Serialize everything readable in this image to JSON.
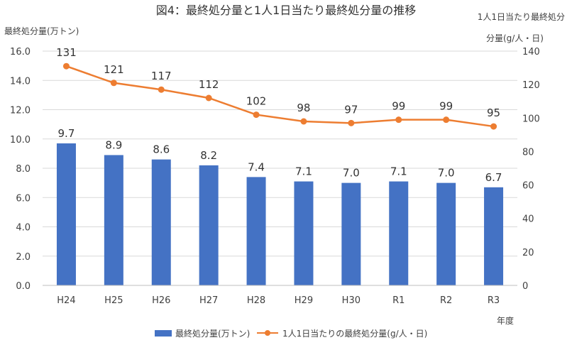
{
  "chart_data": {
    "type": "bar+line",
    "title": "図4：最終処分量と1人1日当たり最終処分量の推移",
    "categories": [
      "H24",
      "H25",
      "H26",
      "H27",
      "H28",
      "H29",
      "H30",
      "R1",
      "R2",
      "R3"
    ],
    "xlabel": "年度",
    "ylabel_left": "最終処分量(万トン)",
    "ylabel_right_line1": "1人1日当たり最終処分",
    "ylabel_right_line2": "分量(g/人・日)",
    "ylim_left": [
      0,
      16
    ],
    "yticks_left": [
      "0.0",
      "2.0",
      "4.0",
      "6.0",
      "8.0",
      "10.0",
      "12.0",
      "14.0",
      "16.0"
    ],
    "ylim_right": [
      0,
      140
    ],
    "yticks_right": [
      "0",
      "20",
      "40",
      "60",
      "80",
      "100",
      "120",
      "140"
    ],
    "grid": true,
    "legend_position": "bottom",
    "series": [
      {
        "name": "最終処分量(万トン)",
        "type": "bar",
        "axis": "left",
        "color": "#4472C4",
        "values": [
          9.7,
          8.9,
          8.6,
          8.2,
          7.4,
          7.1,
          7.0,
          7.1,
          7.0,
          6.7
        ],
        "labels": [
          "9.7",
          "8.9",
          "8.6",
          "8.2",
          "7.4",
          "7.1",
          "7.0",
          "7.1",
          "7.0",
          "6.7"
        ]
      },
      {
        "name": "1人1日当たりの最終処分量(g/人・日)",
        "type": "line",
        "axis": "right",
        "color": "#ED7D31",
        "values": [
          131,
          121,
          117,
          112,
          102,
          98,
          97,
          99,
          99,
          95
        ],
        "labels": [
          "131",
          "121",
          "117",
          "112",
          "102",
          "98",
          "97",
          "99",
          "99",
          "95"
        ]
      }
    ]
  }
}
